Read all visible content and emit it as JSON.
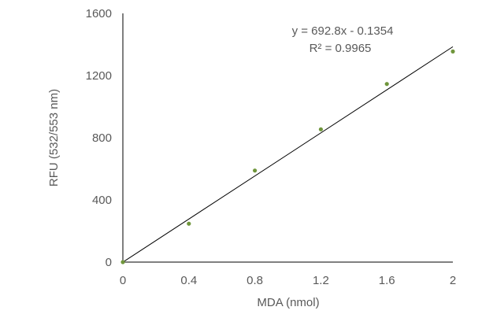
{
  "chart_data": {
    "type": "scatter",
    "title": "",
    "xlabel": "MDA (nmol)",
    "ylabel": "RFU (532/553 nm)",
    "xlim": [
      0,
      2
    ],
    "ylim": [
      0,
      1600
    ],
    "x_ticks": [
      "0",
      "0.4",
      "0.8",
      "1.2",
      "1.6",
      "2"
    ],
    "y_ticks": [
      "0",
      "400",
      "800",
      "1200",
      "1600"
    ],
    "grid": false,
    "points": [
      {
        "x": 0,
        "y": 0
      },
      {
        "x": 0.4,
        "y": 247
      },
      {
        "x": 0.8,
        "y": 589
      },
      {
        "x": 1.2,
        "y": 854
      },
      {
        "x": 1.6,
        "y": 1146
      },
      {
        "x": 2,
        "y": 1355
      }
    ],
    "trendline": {
      "type": "linear",
      "slope": 692.8,
      "intercept": -0.1354
    },
    "equation_label": "y = 692.8x - 0.1354",
    "r2_label": "R² = 0.9965",
    "colors": {
      "points": "#70963c",
      "trendline": "#000000",
      "axis": "#000000",
      "text": "#595959"
    }
  }
}
